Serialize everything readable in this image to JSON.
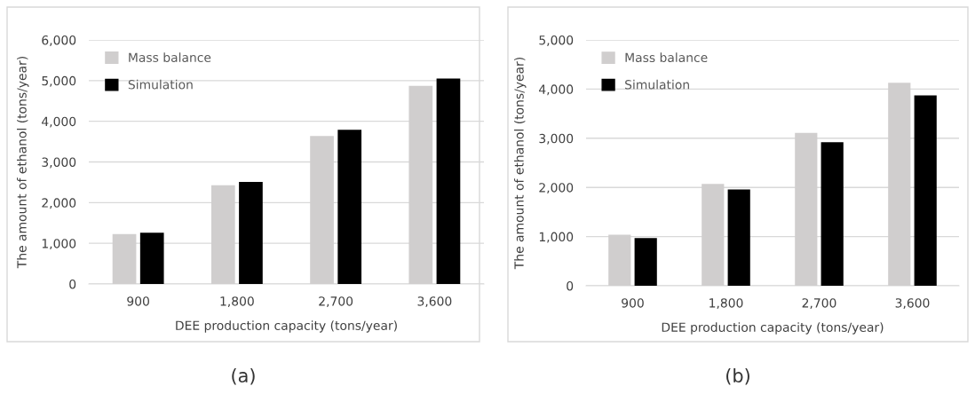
{
  "chart_data": [
    {
      "type": "bar",
      "categories": [
        "900",
        "1,800",
        "2,700",
        "3,600"
      ],
      "xlabel": "DEE production capacity (tons/year)",
      "ylabel": "The amount of ethanol (tons/year)",
      "ylim": [
        0,
        6000
      ],
      "yticks": [
        {
          "value": 0,
          "label": "0"
        },
        {
          "value": 1000,
          "label": "1,000"
        },
        {
          "value": 2000,
          "label": "2,000"
        },
        {
          "value": 3000,
          "label": "3,000"
        },
        {
          "value": 4000,
          "label": "4,000"
        },
        {
          "value": 5000,
          "label": "5,000"
        },
        {
          "value": 6000,
          "label": "6,000"
        }
      ],
      "grid": "y",
      "legend": "top left",
      "annotations": [
        "(a)"
      ],
      "series": [
        {
          "name": "Mass balance",
          "color": "#d0cece",
          "values": [
            1230,
            2430,
            3640,
            4870
          ]
        },
        {
          "name": "Simulation",
          "color": "#000000",
          "values": [
            1260,
            2510,
            3790,
            5050
          ]
        }
      ]
    },
    {
      "type": "bar",
      "categories": [
        "900",
        "1,800",
        "2,700",
        "3,600"
      ],
      "xlabel": "DEE production capacity (tons/year)",
      "ylabel": "The amount of ethanol (tons/year)",
      "ylim": [
        0,
        5000
      ],
      "yticks": [
        {
          "value": 0,
          "label": "0"
        },
        {
          "value": 1000,
          "label": "1,000"
        },
        {
          "value": 2000,
          "label": "2,000"
        },
        {
          "value": 3000,
          "label": "3,000"
        },
        {
          "value": 4000,
          "label": "4,000"
        },
        {
          "value": 5000,
          "label": "5,000"
        }
      ],
      "grid": "y",
      "legend": "top left",
      "annotations": [
        "(b)"
      ],
      "series": [
        {
          "name": "Mass balance",
          "color": "#d0cece",
          "values": [
            1040,
            2070,
            3110,
            4130
          ]
        },
        {
          "name": "Simulation",
          "color": "#000000",
          "values": [
            970,
            1960,
            2920,
            3870
          ]
        }
      ]
    }
  ]
}
